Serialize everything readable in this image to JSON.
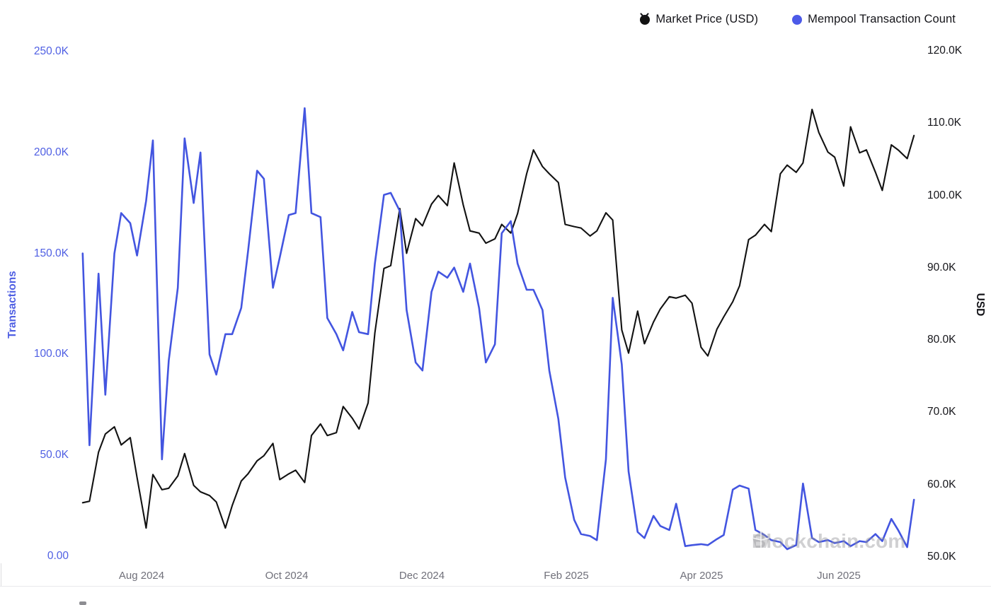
{
  "legend": {
    "items": [
      {
        "label": "Market Price (USD)",
        "color": "#121212"
      },
      {
        "label": "Mempool Transaction Count",
        "color": "#4c5ae8"
      }
    ]
  },
  "left_axis": {
    "title": "Transactions",
    "color": "#4f5fe3",
    "ticks": [
      "250.0K",
      "200.0K",
      "150.0K",
      "100.0K",
      "50.0K",
      "0.00"
    ]
  },
  "right_axis": {
    "title": "USD",
    "color": "#15151a",
    "ticks": [
      "120.0K",
      "110.0K",
      "100.0K",
      "90.0K",
      "80.0K",
      "70.0K",
      "60.0K",
      "50.0K"
    ]
  },
  "x_axis": {
    "ticks": [
      "Aug 2024",
      "Oct 2024",
      "Dec 2024",
      "Feb 2025",
      "Apr 2025",
      "Jun 2025"
    ],
    "color": "#70707a"
  },
  "watermark": {
    "text": "Blockchain.com"
  },
  "chart_data": {
    "type": "line",
    "title": "",
    "x_label": "",
    "left_y_label": "Transactions",
    "right_y_label": "USD",
    "left_ylim_thousands": [
      0,
      250
    ],
    "right_ylim_usd_thousands": [
      50,
      120
    ],
    "grid": false,
    "legend_position": "top-right",
    "x": [
      "2024-07-06",
      "2024-07-09",
      "2024-07-13",
      "2024-07-16",
      "2024-07-20",
      "2024-07-23",
      "2024-07-27",
      "2024-07-30",
      "2024-08-03",
      "2024-08-06",
      "2024-08-10",
      "2024-08-13",
      "2024-08-17",
      "2024-08-20",
      "2024-08-24",
      "2024-08-27",
      "2024-08-31",
      "2024-09-03",
      "2024-09-07",
      "2024-09-10",
      "2024-09-14",
      "2024-09-17",
      "2024-09-21",
      "2024-09-24",
      "2024-09-28",
      "2024-10-01",
      "2024-10-05",
      "2024-10-08",
      "2024-10-12",
      "2024-10-15",
      "2024-10-19",
      "2024-10-22",
      "2024-10-26",
      "2024-10-29",
      "2024-11-02",
      "2024-11-05",
      "2024-11-09",
      "2024-11-12",
      "2024-11-16",
      "2024-11-19",
      "2024-11-23",
      "2024-11-26",
      "2024-11-30",
      "2024-12-03",
      "2024-12-07",
      "2024-12-10",
      "2024-12-14",
      "2024-12-17",
      "2024-12-21",
      "2024-12-24",
      "2024-12-28",
      "2024-12-31",
      "2025-01-04",
      "2025-01-07",
      "2025-01-11",
      "2025-01-14",
      "2025-01-18",
      "2025-01-21",
      "2025-01-25",
      "2025-01-28",
      "2025-02-01",
      "2025-02-04",
      "2025-02-08",
      "2025-02-11",
      "2025-02-15",
      "2025-02-18",
      "2025-02-22",
      "2025-02-25",
      "2025-03-01",
      "2025-03-04",
      "2025-03-08",
      "2025-03-11",
      "2025-03-15",
      "2025-03-18",
      "2025-03-22",
      "2025-03-25",
      "2025-03-29",
      "2025-04-01",
      "2025-04-05",
      "2025-04-08",
      "2025-04-12",
      "2025-04-15",
      "2025-04-19",
      "2025-04-22",
      "2025-04-26",
      "2025-04-29",
      "2025-05-03",
      "2025-05-06",
      "2025-05-10",
      "2025-05-13",
      "2025-05-17",
      "2025-05-20",
      "2025-05-24",
      "2025-05-27",
      "2025-05-31",
      "2025-06-03",
      "2025-06-07",
      "2025-06-10",
      "2025-06-14",
      "2025-06-17",
      "2025-06-21",
      "2025-06-24",
      "2025-06-28",
      "2025-07-01",
      "2025-07-05",
      "2025-07-08"
    ],
    "series": [
      {
        "name": "Market Price (USD)",
        "axis": "right",
        "color": "#121212",
        "unit": "USD thousands",
        "values": [
          57.5,
          57.7,
          64.5,
          67,
          68,
          65.5,
          66.5,
          61,
          54,
          61.4,
          59.3,
          59.5,
          61.2,
          64.3,
          59.9,
          59,
          58.5,
          57.6,
          54,
          57.1,
          60.5,
          61.5,
          63.3,
          64,
          65.7,
          60.7,
          61.5,
          62,
          60.3,
          66.8,
          68.4,
          66.8,
          67.2,
          70.8,
          69.2,
          67.7,
          71.3,
          81,
          89.9,
          90.3,
          98.2,
          92,
          96.8,
          95.8,
          98.8,
          100,
          98.6,
          104.5,
          98.7,
          95.1,
          94.8,
          93.4,
          94,
          96,
          94.8,
          97.5,
          103,
          106.3,
          104,
          103,
          101.8,
          96,
          95.7,
          95.5,
          94.4,
          95.1,
          97.6,
          96.6,
          81.4,
          78.2,
          84,
          79.5,
          82.5,
          84.3,
          86,
          85.8,
          86.2,
          85.1,
          79,
          77.8,
          81.5,
          83.2,
          85.3,
          87.5,
          93.9,
          94.5,
          96,
          95,
          103,
          104.2,
          103.2,
          104.5,
          111.9,
          108.7,
          106,
          105.3,
          101.3,
          109.5,
          105.9,
          106.3,
          103.2,
          100.7,
          107,
          106.3,
          105.1,
          108.3
        ]
      },
      {
        "name": "Mempool Transaction Count",
        "axis": "left",
        "color": "#4355e0",
        "unit": "transactions thousands",
        "values": [
          150,
          55,
          140,
          80,
          150,
          170,
          165,
          149,
          176,
          206,
          48,
          97,
          133,
          207,
          175,
          200,
          100,
          90,
          110,
          110,
          123,
          151,
          191,
          187,
          133,
          148,
          169,
          170,
          222,
          170,
          168,
          118,
          110,
          102,
          121,
          111,
          110,
          145,
          179,
          180,
          171,
          122,
          96,
          92,
          131,
          141,
          138,
          143,
          131,
          145,
          123,
          96,
          105,
          160,
          166,
          145,
          132,
          132,
          122,
          92,
          68,
          39,
          18,
          11,
          10,
          8,
          48,
          128,
          95,
          42,
          12,
          9,
          20,
          15,
          13,
          26,
          5,
          5.5,
          6,
          5.5,
          8.5,
          10.5,
          33,
          35,
          33.5,
          13,
          10.5,
          8,
          7,
          3.5,
          5.5,
          36,
          9,
          7,
          8,
          6.5,
          7.5,
          5,
          7.5,
          7,
          11,
          7.5,
          18.5,
          13,
          4.5,
          28
        ]
      }
    ]
  }
}
